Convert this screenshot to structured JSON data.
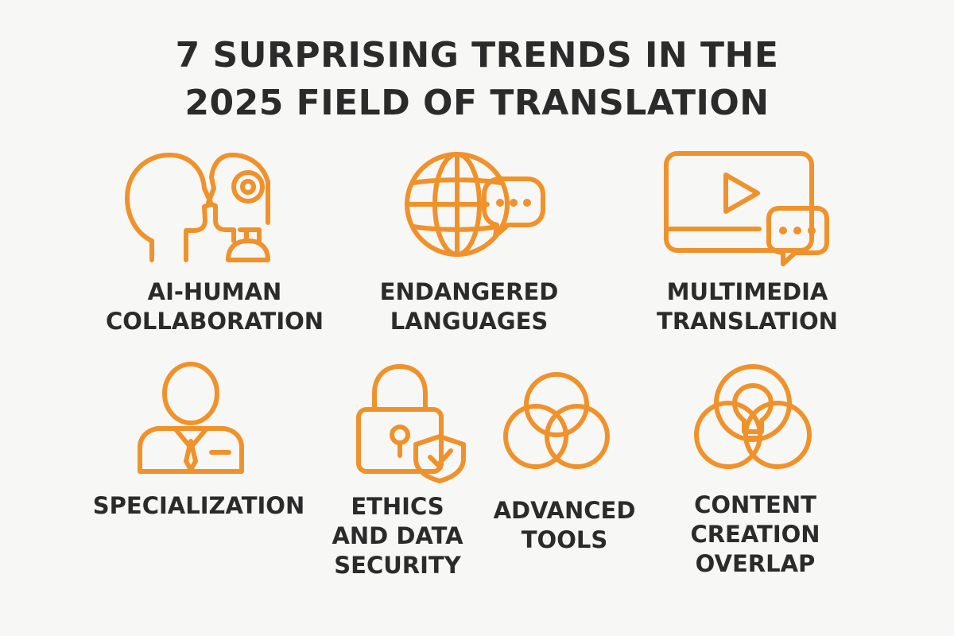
{
  "title": {
    "line1": "7 SURPRISING TRENDS IN THE",
    "line2": "2025 FIELD OF TRANSLATION"
  },
  "accent_color": "#f0922b",
  "text_color": "#2b2b2b",
  "trends": [
    {
      "icon": "human-robot-heads-icon",
      "lines": [
        "AI-HUMAN",
        "COLLABORATION"
      ]
    },
    {
      "icon": "globe-speech-bubble-icon",
      "lines": [
        "ENDANGERED",
        "LANGUAGES"
      ]
    },
    {
      "icon": "video-player-chat-icon",
      "lines": [
        "MULTIMEDIA",
        "TRANSLATION"
      ]
    },
    {
      "icon": "professional-person-icon",
      "lines": [
        "SPECIALIZATION"
      ]
    },
    {
      "icon": "padlock-shield-icon",
      "lines": [
        "ETHICS",
        "AND DATA",
        "SECURITY"
      ]
    },
    {
      "icon": "venn-circles-icon",
      "lines": [
        "ADVANCED",
        "TOOLS"
      ]
    },
    {
      "icon": "lightbulb-venn-icon",
      "lines": [
        "CONTENT",
        "CREATION",
        "OVERLAP"
      ]
    }
  ]
}
